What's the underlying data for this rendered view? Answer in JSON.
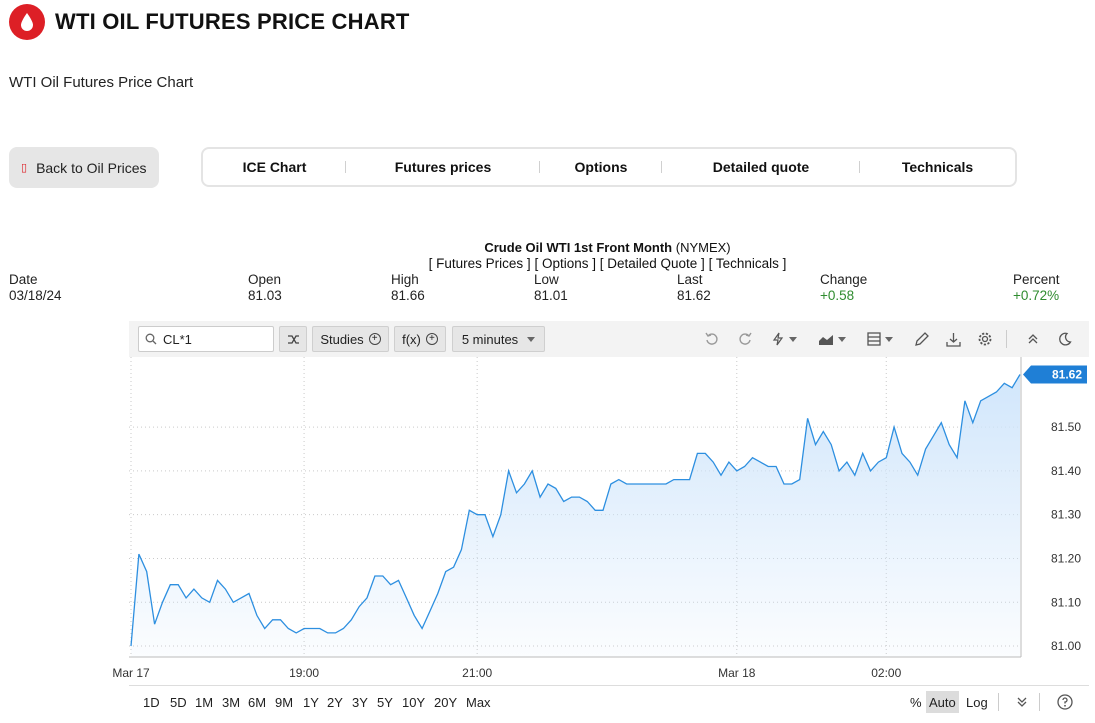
{
  "header": {
    "title": "WTI OIL FUTURES PRICE CHART",
    "logo_icon": "oil-drop-icon",
    "brand_color": "#dd1f26"
  },
  "subtitle": "WTI Oil Futures Price Chart",
  "back_button": {
    "label": "Back to Oil Prices",
    "icon": "back-icon"
  },
  "tabs": [
    {
      "label": "ICE Chart"
    },
    {
      "label": "Futures prices"
    },
    {
      "label": "Options"
    },
    {
      "label": "Detailed quote"
    },
    {
      "label": "Technicals"
    }
  ],
  "instrument": {
    "name": "Crude Oil WTI 1st Front Month",
    "exchange": "(NYMEX)",
    "links": [
      "[ Futures Prices ]",
      "[ Options ]",
      "[ Detailed Quote ]",
      "[ Technicals ]"
    ]
  },
  "stats": {
    "date_label": "Date",
    "date": "03/18/24",
    "open_label": "Open",
    "open": "81.03",
    "high_label": "High",
    "high": "81.66",
    "low_label": "Low",
    "low": "81.01",
    "last_label": "Last",
    "last": "81.62",
    "change_label": "Change",
    "change": "+0.58",
    "percent_label": "Percent",
    "percent": "+0.72%",
    "positive_color": "#2f8c2f"
  },
  "toolbar": {
    "symbol": "CL*1",
    "studies_label": "Studies",
    "fx_label": "f(x)",
    "interval_label": "5 minutes"
  },
  "ranges": [
    "1D",
    "5D",
    "1M",
    "3M",
    "6M",
    "9M",
    "1Y",
    "2Y",
    "3Y",
    "5Y",
    "10Y",
    "20Y",
    "Max"
  ],
  "scale_options": {
    "percent": "%",
    "auto": "Auto",
    "log": "Log"
  },
  "chart_data": {
    "type": "area",
    "title": "",
    "xlabel": "",
    "ylabel": "",
    "line_color": "#2d8fe0",
    "fill_color": "#cfe5fb",
    "last_badge_color": "#1f7fd6",
    "last_value_label": "81.62",
    "ylim": [
      80.975,
      81.66
    ],
    "y_ticks": [
      81.0,
      81.1,
      81.2,
      81.3,
      81.4,
      81.5
    ],
    "y_tick_labels": [
      "81.00",
      "81.10",
      "81.20",
      "81.30",
      "81.40",
      "81.50"
    ],
    "x_tick_labels": [
      "Mar 17",
      "19:00",
      "21:00",
      "Mar 18",
      "02:00"
    ],
    "x_tick_index": [
      0,
      22,
      44,
      77,
      96
    ],
    "grid": true,
    "values": [
      81.0,
      81.21,
      81.17,
      81.05,
      81.1,
      81.14,
      81.14,
      81.11,
      81.13,
      81.11,
      81.1,
      81.15,
      81.13,
      81.1,
      81.11,
      81.12,
      81.07,
      81.04,
      81.06,
      81.06,
      81.04,
      81.03,
      81.04,
      81.04,
      81.04,
      81.03,
      81.03,
      81.04,
      81.06,
      81.09,
      81.11,
      81.16,
      81.16,
      81.14,
      81.15,
      81.11,
      81.07,
      81.04,
      81.08,
      81.12,
      81.17,
      81.18,
      81.22,
      81.31,
      81.3,
      81.3,
      81.25,
      81.3,
      81.4,
      81.35,
      81.37,
      81.4,
      81.34,
      81.37,
      81.36,
      81.33,
      81.34,
      81.34,
      81.33,
      81.31,
      81.31,
      81.37,
      81.38,
      81.37,
      81.37,
      81.37,
      81.37,
      81.37,
      81.37,
      81.38,
      81.38,
      81.38,
      81.44,
      81.44,
      81.42,
      81.39,
      81.42,
      81.4,
      81.41,
      81.43,
      81.42,
      81.41,
      81.41,
      81.37,
      81.37,
      81.38,
      81.52,
      81.46,
      81.49,
      81.46,
      81.4,
      81.42,
      81.39,
      81.44,
      81.4,
      81.42,
      81.43,
      81.5,
      81.44,
      81.42,
      81.39,
      81.45,
      81.48,
      81.51,
      81.46,
      81.43,
      81.56,
      81.51,
      81.56,
      81.57,
      81.58,
      81.6,
      81.59,
      81.62
    ]
  }
}
